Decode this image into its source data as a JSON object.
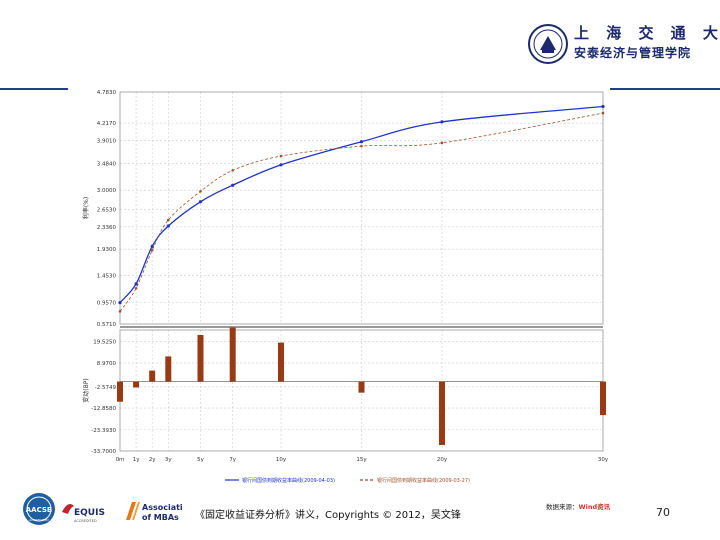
{
  "header": {
    "university_name": "上 海 交 通 大 学",
    "school_name": "安泰经济与管理学院"
  },
  "footer": {
    "text": "《固定收益证券分析》讲义，Copyrights © 2012，吴文锋",
    "source_prefix": "数据来源：",
    "source_brand": "Wind资讯",
    "page_number": "70"
  },
  "logos": {
    "aacsb": "AACSB",
    "aacsb_sub": "ACCREDITED",
    "equis": "EQUIS",
    "equis_sub": "ACCREDITED",
    "amba_line1": "Association",
    "amba_line2": "of MBAs"
  },
  "colors": {
    "series_current": "#1e35c8",
    "series_previous": "#a0522d",
    "bars": "#9a3a12",
    "brand_blue": "#1c2a6b"
  },
  "chart_data": [
    {
      "type": "line",
      "categories": [
        "0m",
        "1y",
        "2y",
        "3y",
        "5y",
        "7y",
        "10y",
        "15y",
        "20y",
        "30y"
      ],
      "x": [
        0,
        1,
        2,
        3,
        5,
        7,
        10,
        15,
        20,
        30
      ],
      "ylabel": "利率(%)",
      "ylim": [
        0.571,
        4.783
      ],
      "yticks": [
        "0.5710",
        "0.9570",
        "1.4530",
        "1.9300",
        "2.3360",
        "2.6530",
        "3.0000",
        "3.4840",
        "3.9010",
        "4.2170",
        "4.7830"
      ],
      "ytick_values": [
        0.571,
        0.957,
        1.453,
        1.93,
        2.336,
        2.653,
        3.0,
        3.484,
        3.901,
        4.217,
        4.783
      ],
      "grid": true,
      "legend_position": "bottom",
      "series": [
        {
          "name": "银行间国债到期收益率曲线(2009-04-03)",
          "values": [
            0.96,
            1.3,
            1.98,
            2.35,
            2.79,
            3.09,
            3.46,
            3.88,
            4.24,
            4.52
          ],
          "smooth": true
        },
        {
          "name": "银行间国债到期收益率曲线(2009-03-27)",
          "values": [
            0.8,
            1.22,
            1.91,
            2.46,
            2.98,
            3.36,
            3.62,
            3.8,
            3.86,
            4.4
          ],
          "dashed": true
        }
      ]
    },
    {
      "type": "bar",
      "categories": [
        "0m",
        "1y",
        "2y",
        "3y",
        "5y",
        "7y",
        "10y",
        "15y",
        "20y",
        "30y"
      ],
      "x": [
        0,
        1,
        2,
        3,
        5,
        7,
        10,
        15,
        20,
        30
      ],
      "ylabel": "变动(BP)",
      "yticks": [
        "19.5250",
        "8.9700",
        "-2.5749",
        "-12.8580",
        "-23.3930",
        "-33.7000"
      ],
      "ytick_values": [
        19.525,
        8.97,
        -2.5749,
        -12.858,
        -23.393,
        -33.7
      ],
      "ylim": [
        -33.7,
        25
      ],
      "grid": true,
      "values": [
        -9.8,
        -2.9,
        5.3,
        12.2,
        22.6,
        26.1,
        18.9,
        -5.4,
        -30.8,
        -16.3
      ]
    }
  ]
}
